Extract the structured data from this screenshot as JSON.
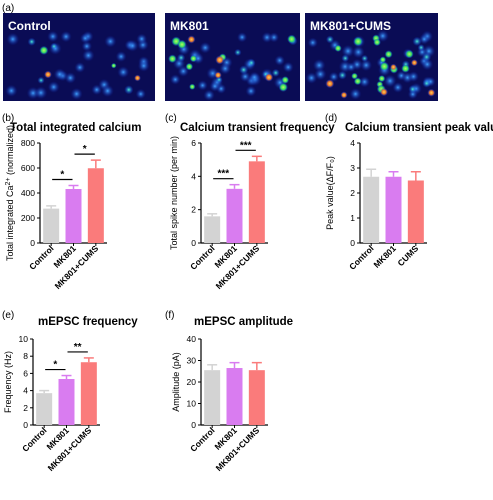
{
  "images": {
    "panel_label": "(a)",
    "items": [
      {
        "label": "Control",
        "label_color": "#ffffff"
      },
      {
        "label": "MK801",
        "label_color": "#ffffff"
      },
      {
        "label": "MK801+CUMS",
        "label_color": "#ffffff"
      }
    ]
  },
  "colors": {
    "Control": "#d3d3d3",
    "MK801": "#d97cf0",
    "MK801+CUMS": "#fa7b7b",
    "CUMS": "#fa7b7b"
  },
  "chart_data": [
    {
      "panel": "(b)",
      "type": "bar",
      "title": "Total integrated calcium",
      "ylabel": "Total integrated Ca2+ (normalized)",
      "categories": [
        "Control",
        "MK801",
        "MK801+CUMS"
      ],
      "values": [
        275,
        432,
        598
      ],
      "errors": [
        22,
        28,
        65
      ],
      "ylim": [
        0,
        800
      ],
      "yticks": [
        0,
        200,
        400,
        600,
        800
      ],
      "significance": [
        {
          "from": 0,
          "to": 1,
          "label": "*"
        },
        {
          "from": 1,
          "to": 2,
          "label": "*"
        }
      ]
    },
    {
      "panel": "(c)",
      "type": "bar",
      "title": "Calcium transient frequency",
      "ylabel": "Total spike number (per min)",
      "categories": [
        "Control",
        "MK801",
        "MK801+CUMS"
      ],
      "values": [
        1.6,
        3.25,
        4.9
      ],
      "errors": [
        0.15,
        0.25,
        0.3
      ],
      "ylim": [
        0,
        6
      ],
      "yticks": [
        0,
        2,
        4,
        6
      ],
      "significance": [
        {
          "from": 0,
          "to": 1,
          "label": "***"
        },
        {
          "from": 1,
          "to": 2,
          "label": "***"
        }
      ]
    },
    {
      "panel": "(d)",
      "type": "bar",
      "title": "Calcium transient peak value",
      "ylabel": "Peak value(ΔF/F₀)",
      "categories": [
        "Control",
        "MK801",
        "CUMS"
      ],
      "values": [
        2.65,
        2.65,
        2.5
      ],
      "errors": [
        0.3,
        0.2,
        0.35
      ],
      "ylim": [
        0,
        4
      ],
      "yticks": [
        0,
        1,
        2,
        3,
        4
      ],
      "significance": []
    },
    {
      "panel": "(e)",
      "type": "bar",
      "title": "mEPSC frequency",
      "ylabel": "Frequency (Hz)",
      "categories": [
        "Control",
        "MK801",
        "MK801+CUMS"
      ],
      "values": [
        3.7,
        5.35,
        7.3
      ],
      "errors": [
        0.3,
        0.4,
        0.5
      ],
      "ylim": [
        0,
        10
      ],
      "yticks": [
        0,
        2,
        4,
        6,
        8,
        10
      ],
      "significance": [
        {
          "from": 0,
          "to": 1,
          "label": "*"
        },
        {
          "from": 1,
          "to": 2,
          "label": "**"
        }
      ]
    },
    {
      "panel": "(f)",
      "type": "bar",
      "title": "mEPSC amplitude",
      "ylabel": "Amplitude (pA)",
      "categories": [
        "Control",
        "MK801",
        "MK801+CUMS"
      ],
      "values": [
        25.5,
        26.5,
        25.5
      ],
      "errors": [
        2.5,
        2.5,
        3.5
      ],
      "ylim": [
        0,
        40
      ],
      "yticks": [
        0,
        10,
        20,
        30,
        40
      ],
      "significance": []
    }
  ]
}
